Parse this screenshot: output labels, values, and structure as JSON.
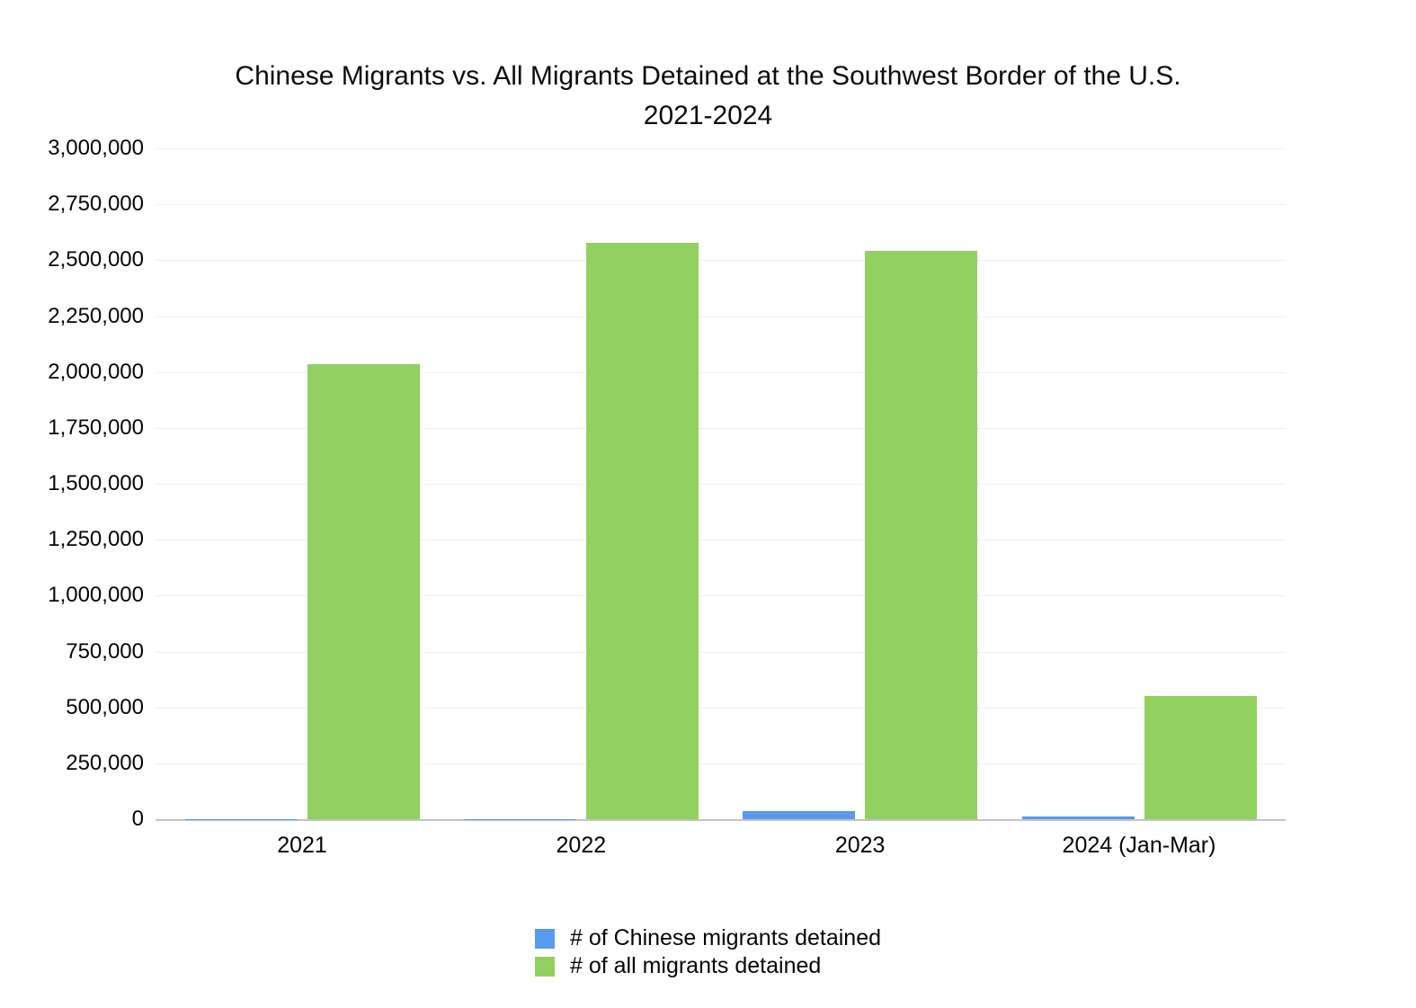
{
  "title": {
    "line1": "Chinese Migrants vs. All Migrants Detained at the Southwest Border of the U.S.",
    "line2": "2021-2024"
  },
  "chart_data": {
    "type": "bar",
    "title": "Chinese Migrants vs. All Migrants Detained at the Southwest Border of the U.S. 2021-2024",
    "categories": [
      "2021",
      "2022",
      "2023",
      "2024 (Jan-Mar)"
    ],
    "series": [
      {
        "name": "# of Chinese migrants detained",
        "color": "#589AED",
        "values": [
          450,
          2000,
          37500,
          13000
        ]
      },
      {
        "name": "# of all migrants detained",
        "color": "#92D15F",
        "values": [
          2035000,
          2578000,
          2540000,
          552000
        ]
      }
    ],
    "xlabel": "",
    "ylabel": "",
    "ylim": [
      0,
      3000000
    ],
    "ytick_interval": 250000,
    "ytick_labels": [
      "3,000,000",
      "2,750,000",
      "2,500,000",
      "2,250,000",
      "2,000,000",
      "1,750,000",
      "1,500,000",
      "1,250,000",
      "1,000,000",
      "750,000",
      "500,000",
      "250,000",
      "0"
    ],
    "grid": true,
    "legend_position": "bottom"
  },
  "colors": {
    "gridline": "#f1f1f1",
    "axis_line": "#c3c3c3",
    "background": "#ffffff",
    "text": "#060606"
  }
}
